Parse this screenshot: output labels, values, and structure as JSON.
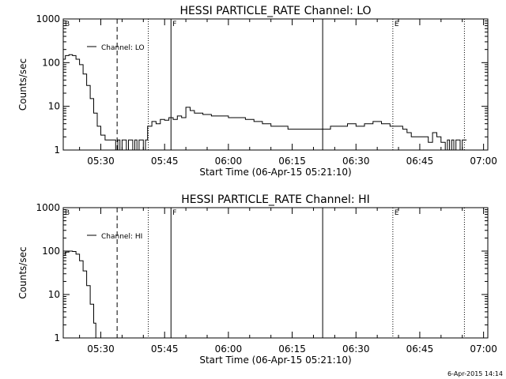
{
  "footer_date": "6-Apr-2015 14:14",
  "chart_data": [
    {
      "type": "line",
      "title": "HESSI PARTICLE_RATE Channel: LO",
      "xlabel": "Start Time (06-Apr-15 05:21:10)",
      "ylabel": "Counts/sec",
      "yscale": "log",
      "ylim": [
        1,
        1000
      ],
      "xlim": [
        "05:21:10",
        "07:01:00"
      ],
      "xticks": [
        "05:30",
        "05:45",
        "06:00",
        "06:15",
        "06:30",
        "06:45",
        "07:00"
      ],
      "yticks": [
        "1",
        "10",
        "100",
        "1000"
      ],
      "legend": {
        "entries": [
          "Channel: LO"
        ],
        "placement": "top-left"
      },
      "markers": [
        {
          "time": "05:21:10",
          "label": "B",
          "style": "solid"
        },
        {
          "time": "05:33:50",
          "label": "",
          "style": "dashed"
        },
        {
          "time": "05:41:10",
          "label": "",
          "style": "dotted"
        },
        {
          "time": "05:46:30",
          "label": "F",
          "style": "solid"
        },
        {
          "time": "06:22:10",
          "label": "",
          "style": "solid"
        },
        {
          "time": "06:38:40",
          "label": "E",
          "style": "dotted"
        },
        {
          "time": "06:55:30",
          "label": "",
          "style": "dotted"
        }
      ],
      "series": [
        {
          "name": "Channel: LO",
          "points": [
            [
              "05:21:10",
              120
            ],
            [
              "05:21:40",
              145
            ],
            [
              "05:22:30",
              152
            ],
            [
              "05:23:20",
              145
            ],
            [
              "05:24:10",
              120
            ],
            [
              "05:25:00",
              90
            ],
            [
              "05:25:50",
              55
            ],
            [
              "05:26:40",
              30
            ],
            [
              "05:27:30",
              15
            ],
            [
              "05:28:20",
              7
            ],
            [
              "05:29:10",
              3.5
            ],
            [
              "05:30:00",
              2.2
            ],
            [
              "05:31:00",
              1.7
            ],
            [
              "05:32:00",
              1.7
            ],
            [
              "05:33:00",
              1.7
            ],
            [
              "05:33:30",
              1.0
            ],
            [
              "05:34:00",
              1.7
            ],
            [
              "05:34:30",
              1.0
            ],
            [
              "05:35:00",
              1.7
            ],
            [
              "05:35:30",
              1.7
            ],
            [
              "05:36:00",
              1.0
            ],
            [
              "05:36:30",
              1.7
            ],
            [
              "05:37:00",
              1.7
            ],
            [
              "05:37:30",
              1.0
            ],
            [
              "05:38:00",
              1.7
            ],
            [
              "05:38:30",
              1.0
            ],
            [
              "05:39:00",
              1.7
            ],
            [
              "05:39:30",
              1.7
            ],
            [
              "05:40:00",
              1.0
            ],
            [
              "05:40:30",
              1.7
            ],
            [
              "05:41:00",
              3.5
            ],
            [
              "05:42:00",
              4.5
            ],
            [
              "05:43:00",
              4.0
            ],
            [
              "05:44:00",
              5.0
            ],
            [
              "05:45:00",
              4.8
            ],
            [
              "05:46:00",
              5.5
            ],
            [
              "05:47:00",
              5.0
            ],
            [
              "05:48:00",
              6.0
            ],
            [
              "05:49:00",
              5.5
            ],
            [
              "05:50:00",
              9.5
            ],
            [
              "05:51:00",
              8.0
            ],
            [
              "05:52:00",
              7.0
            ],
            [
              "05:54:00",
              6.5
            ],
            [
              "05:56:00",
              6.0
            ],
            [
              "05:58:00",
              6.0
            ],
            [
              "06:00:00",
              5.5
            ],
            [
              "06:02:00",
              5.5
            ],
            [
              "06:04:00",
              5.0
            ],
            [
              "06:06:00",
              4.5
            ],
            [
              "06:08:00",
              4.0
            ],
            [
              "06:10:00",
              3.5
            ],
            [
              "06:12:00",
              3.5
            ],
            [
              "06:14:00",
              3.0
            ],
            [
              "06:16:00",
              3.0
            ],
            [
              "06:18:00",
              3.0
            ],
            [
              "06:20:00",
              3.0
            ],
            [
              "06:22:00",
              3.0
            ],
            [
              "06:24:00",
              3.5
            ],
            [
              "06:26:00",
              3.5
            ],
            [
              "06:28:00",
              4.0
            ],
            [
              "06:30:00",
              3.5
            ],
            [
              "06:32:00",
              4.0
            ],
            [
              "06:34:00",
              4.5
            ],
            [
              "06:36:00",
              4.0
            ],
            [
              "06:38:00",
              3.5
            ],
            [
              "06:40:00",
              3.5
            ],
            [
              "06:41:00",
              3.0
            ],
            [
              "06:42:00",
              2.5
            ],
            [
              "06:43:00",
              2.0
            ],
            [
              "06:44:00",
              2.0
            ],
            [
              "06:45:00",
              2.0
            ],
            [
              "06:46:00",
              2.0
            ],
            [
              "06:47:00",
              1.5
            ],
            [
              "06:48:00",
              2.5
            ],
            [
              "06:49:00",
              2.0
            ],
            [
              "06:50:00",
              1.5
            ],
            [
              "06:51:00",
              1.0
            ],
            [
              "06:51:30",
              1.7
            ],
            [
              "06:52:00",
              1.0
            ],
            [
              "06:52:30",
              1.7
            ],
            [
              "06:53:00",
              1.0
            ],
            [
              "06:53:30",
              1.7
            ],
            [
              "06:54:00",
              1.7
            ],
            [
              "06:54:30",
              1.0
            ],
            [
              "06:55:00",
              1.7
            ],
            [
              "06:56:00",
              1.7
            ]
          ]
        }
      ]
    },
    {
      "type": "line",
      "title": "HESSI PARTICLE_RATE Channel: HI",
      "xlabel": "Start Time (06-Apr-15 05:21:10)",
      "ylabel": "Counts/sec",
      "yscale": "log",
      "ylim": [
        1,
        1000
      ],
      "xlim": [
        "05:21:10",
        "07:01:00"
      ],
      "xticks": [
        "05:30",
        "05:45",
        "06:00",
        "06:15",
        "06:30",
        "06:45",
        "07:00"
      ],
      "yticks": [
        "1",
        "10",
        "100",
        "1000"
      ],
      "legend": {
        "entries": [
          "Channel: HI"
        ],
        "placement": "top-left"
      },
      "markers": [
        {
          "time": "05:21:10",
          "label": "B",
          "style": "solid"
        },
        {
          "time": "05:33:50",
          "label": "",
          "style": "dashed"
        },
        {
          "time": "05:41:10",
          "label": "",
          "style": "dotted"
        },
        {
          "time": "05:46:30",
          "label": "F",
          "style": "solid"
        },
        {
          "time": "06:22:10",
          "label": "",
          "style": "solid"
        },
        {
          "time": "06:38:40",
          "label": "E",
          "style": "dotted"
        },
        {
          "time": "06:55:30",
          "label": "",
          "style": "dotted"
        }
      ],
      "series": [
        {
          "name": "Channel: HI",
          "points": [
            [
              "05:21:10",
              80
            ],
            [
              "05:21:40",
              95
            ],
            [
              "05:22:30",
              100
            ],
            [
              "05:23:20",
              98
            ],
            [
              "05:24:10",
              85
            ],
            [
              "05:25:00",
              60
            ],
            [
              "05:25:50",
              35
            ],
            [
              "05:26:40",
              16
            ],
            [
              "05:27:30",
              6
            ],
            [
              "05:28:20",
              2.2
            ],
            [
              "05:28:50",
              1.0
            ]
          ]
        }
      ]
    }
  ]
}
